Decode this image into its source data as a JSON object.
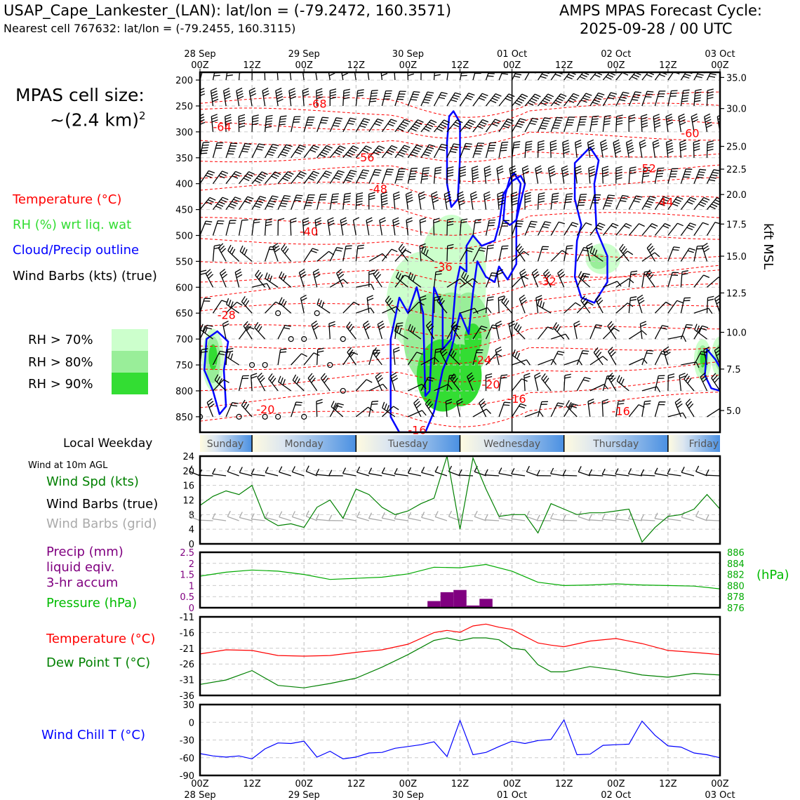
{
  "header": {
    "station_title": "USAP_Cape_Lankester_(LAN): lat/lon = (-79.2472, 160.3571)",
    "cell_line": "Nearest cell 767632: lat/lon = (-79.2455, 160.3115)",
    "cycle_line1": "AMPS MPAS Forecast Cycle:",
    "cycle_line2": "2025-09-28 / 00 UTC"
  },
  "cell_size": {
    "line1": "MPAS cell size:",
    "line2": "~(2.4 km)",
    "sup": "2"
  },
  "legend": {
    "temperature": "Temperature (°C)",
    "rh": "RH (%) wrt liq. wat",
    "cloud": "Cloud/Precip outline",
    "barbs": "Wind Barbs (kts) (true)",
    "rh70": "RH > 70%",
    "rh80": "RH > 80%",
    "rh90": "RH > 90%"
  },
  "colors": {
    "temperature": "#ff0000",
    "rh_text": "#33dd33",
    "cloud": "#0000ff",
    "rh70": "#ccffcc",
    "rh80": "#99ee99",
    "rh90": "#33dd33",
    "precip": "#800080",
    "pressure": "#00aa00",
    "dewpoint": "#008000",
    "windchill": "#0000ff",
    "grid_barbs": "#aaaaaa"
  },
  "time_axis": {
    "top_dates": [
      "28 Sep",
      "29 Sep",
      "30 Sep",
      "01 Oct",
      "02 Oct",
      "03 Oct"
    ],
    "top_hours": [
      "00Z",
      "12Z",
      "00Z",
      "12Z",
      "00Z",
      "12Z",
      "00Z",
      "12Z",
      "00Z",
      "12Z",
      "00Z"
    ],
    "bottom_hours": [
      "00Z",
      "12Z",
      "00Z",
      "12Z",
      "00Z",
      "12Z",
      "00Z",
      "12Z",
      "00Z",
      "12Z",
      "00Z"
    ],
    "bottom_dates": [
      "28 Sep",
      "29 Sep",
      "30 Sep",
      "01 Oct",
      "02 Oct",
      "03 Oct"
    ]
  },
  "weekday_bar": {
    "label": "Local Weekday",
    "days": [
      "Sunday",
      "Monday",
      "Tuesday",
      "Wednesday",
      "Thursday",
      "Friday"
    ]
  },
  "panels": {
    "wind_title": "Wind at 10m AGL",
    "wind_spd": "Wind Spd (kts)",
    "wind_barbs_true": "Wind Barbs (true)",
    "wind_barbs_grid": "Wind Barbs (grid)",
    "precip_line1": "Precip (mm)",
    "precip_line2": "liquid eqiv.",
    "precip_line3": "3-hr accum",
    "pressure": "Pressure (hPa)",
    "pressure_unit": "(hPa)",
    "temp": "Temperature (°C)",
    "dewpoint": "Dew Point T (°C)",
    "windchill": "Wind Chill T (°C)",
    "right_axis_label": "kft MSL"
  },
  "chart_data": [
    {
      "type": "heatmap",
      "x_unit": "forecast hour",
      "xlim": [
        0,
        120
      ],
      "y_unit": "hPa",
      "ylim": [
        880,
        185
      ],
      "pressure_ticks": [
        200,
        250,
        300,
        350,
        400,
        450,
        500,
        550,
        600,
        650,
        700,
        750,
        800,
        850
      ],
      "height_ticks_kft": [
        "35.0",
        "30.0",
        "25.0",
        "22.5",
        "20.0",
        "17.5",
        "15.0",
        "12.5",
        "10.0",
        "7.5",
        "5.0"
      ],
      "height_tick_pressures": [
        195,
        255,
        328,
        372,
        421,
        478,
        540,
        611,
        687,
        758,
        838
      ],
      "isotherm_labels": [
        {
          "text": "-68",
          "x": 12.5,
          "p": 245
        },
        {
          "text": "-64",
          "x": 1.5,
          "p": 290
        },
        {
          "text": "-56",
          "x": 18,
          "p": 349
        },
        {
          "text": "-48",
          "x": 19.5,
          "p": 410
        },
        {
          "text": "-40",
          "x": 11.5,
          "p": 492
        },
        {
          "text": "-36",
          "x": 27,
          "p": 560
        },
        {
          "text": "-32",
          "x": 39,
          "p": 588
        },
        {
          "text": "-28",
          "x": 2,
          "p": 653
        },
        {
          "text": "-24",
          "x": 31.5,
          "p": 740
        },
        {
          "text": "-20",
          "x": 32.5,
          "p": 787
        },
        {
          "text": "-20",
          "x": 6.5,
          "p": 835
        },
        {
          "text": "-16",
          "x": 35.5,
          "p": 815
        },
        {
          "text": "-16",
          "x": 24,
          "p": 875
        },
        {
          "text": "-16",
          "x": 47.5,
          "p": 839
        },
        {
          "text": "-52",
          "x": 50.5,
          "p": 370
        },
        {
          "text": "-44",
          "x": 52.5,
          "p": 435
        },
        {
          "text": "-60",
          "x": 55.5,
          "p": 302
        }
      ]
    },
    {
      "type": "line",
      "title": "Wind Spd (kts)",
      "x": [
        0,
        3,
        6,
        9,
        12,
        15,
        18,
        21,
        24,
        27,
        30,
        33,
        36,
        39,
        42,
        45,
        48,
        51,
        54,
        57,
        60,
        63,
        66,
        69,
        72,
        75,
        78,
        81,
        84,
        87,
        90,
        93,
        96,
        99,
        102,
        105,
        108,
        111,
        114,
        117,
        120
      ],
      "series": [
        {
          "values": [
            10.5,
            13,
            14.5,
            13.5,
            16,
            7,
            5,
            5.5,
            4.5,
            10,
            12,
            7,
            15,
            13.5,
            10,
            8,
            9,
            11,
            12.5,
            24,
            4,
            23.5,
            15,
            7.5,
            8,
            8,
            3,
            11,
            9.5,
            8,
            8.5,
            8.5,
            9,
            9.5,
            0.5,
            4.5,
            7.5,
            8,
            9.5,
            13.5,
            9.5
          ]
        }
      ],
      "ylim": [
        0,
        24
      ],
      "yticks": [
        0,
        4,
        8,
        12,
        16,
        20,
        24
      ]
    },
    {
      "type": "bar",
      "title": "Precip (mm)",
      "x": [
        54,
        57,
        60,
        63,
        66
      ],
      "values": [
        0.3,
        0.7,
        0.8,
        0.1,
        0.4
      ],
      "ylim": [
        0,
        2.5
      ],
      "yticks": [
        0,
        0.5,
        1.0,
        1.5,
        2.0,
        2.5
      ]
    },
    {
      "type": "line",
      "title": "Pressure (hPa)",
      "x": [
        0,
        6,
        12,
        18,
        24,
        30,
        36,
        42,
        48,
        54,
        60,
        66,
        72,
        78,
        84,
        90,
        96,
        102,
        108,
        114,
        120
      ],
      "series": [
        {
          "values": [
            881.7,
            882.4,
            882.8,
            882.6,
            882.0,
            881.1,
            881.3,
            881.5,
            882.1,
            883.3,
            883.2,
            883.8,
            882.6,
            880.6,
            880.0,
            880.1,
            880.3,
            880.1,
            880.0,
            879.9,
            879.4
          ]
        }
      ],
      "ylim": [
        876,
        886
      ],
      "yticks": [
        876,
        878,
        880,
        882,
        884,
        886
      ]
    },
    {
      "type": "line",
      "title": "Temperature (°C)",
      "x": [
        0,
        6,
        12,
        18,
        24,
        30,
        36,
        42,
        48,
        54,
        57,
        60,
        63,
        66,
        69,
        72,
        75,
        78,
        81,
        84,
        90,
        96,
        102,
        108,
        114,
        120
      ],
      "series": [
        {
          "name": "Temperature (°C)",
          "values": [
            -22.8,
            -21.5,
            -21.7,
            -23.3,
            -23.5,
            -23.3,
            -22.3,
            -21.5,
            -19.7,
            -16,
            -15.3,
            -15.9,
            -13.9,
            -13.3,
            -14.3,
            -15,
            -17.2,
            -19.3,
            -20,
            -20.5,
            -18.7,
            -17.9,
            -19.5,
            -21.7,
            -22.3,
            -23
          ]
        },
        {
          "name": "Dew Point T (°C)",
          "values": [
            -32.5,
            -31.1,
            -28.1,
            -32.8,
            -33.6,
            -32.2,
            -30.5,
            -27,
            -23,
            -18.5,
            -17.7,
            -18.6,
            -17.7,
            -17.7,
            -18.3,
            -21,
            -21.5,
            -26.2,
            -28.5,
            -28.5,
            -26.8,
            -27.9,
            -29.5,
            -30.2,
            -29,
            -29.5
          ]
        }
      ],
      "ylim": [
        -36,
        -11
      ],
      "yticks": [
        -36,
        -31,
        -26,
        -21,
        -16,
        -11
      ]
    },
    {
      "type": "line",
      "title": "Wind Chill T (°C)",
      "x": [
        0,
        3,
        6,
        9,
        12,
        15,
        18,
        21,
        24,
        27,
        30,
        33,
        36,
        39,
        42,
        45,
        48,
        51,
        54,
        57,
        60,
        63,
        66,
        69,
        72,
        75,
        78,
        81,
        84,
        87,
        90,
        93,
        96,
        99,
        102,
        105,
        108,
        111,
        114,
        117,
        120
      ],
      "series": [
        {
          "values": [
            -53,
            -57,
            -59,
            -57,
            -62,
            -45,
            -35,
            -36,
            -32,
            -59,
            -49,
            -62,
            -59,
            -52,
            -51,
            -44,
            -41,
            -38,
            -33,
            -58,
            3,
            -55,
            -51,
            -41,
            -32,
            -36,
            -31,
            -29,
            4,
            -55,
            -54,
            -39,
            -38,
            -37,
            2,
            -22,
            -40,
            -42,
            -52,
            -55,
            -60
          ]
        }
      ],
      "ylim": [
        -90,
        30
      ],
      "yticks": [
        -90,
        -60,
        -30,
        0,
        30
      ]
    }
  ]
}
